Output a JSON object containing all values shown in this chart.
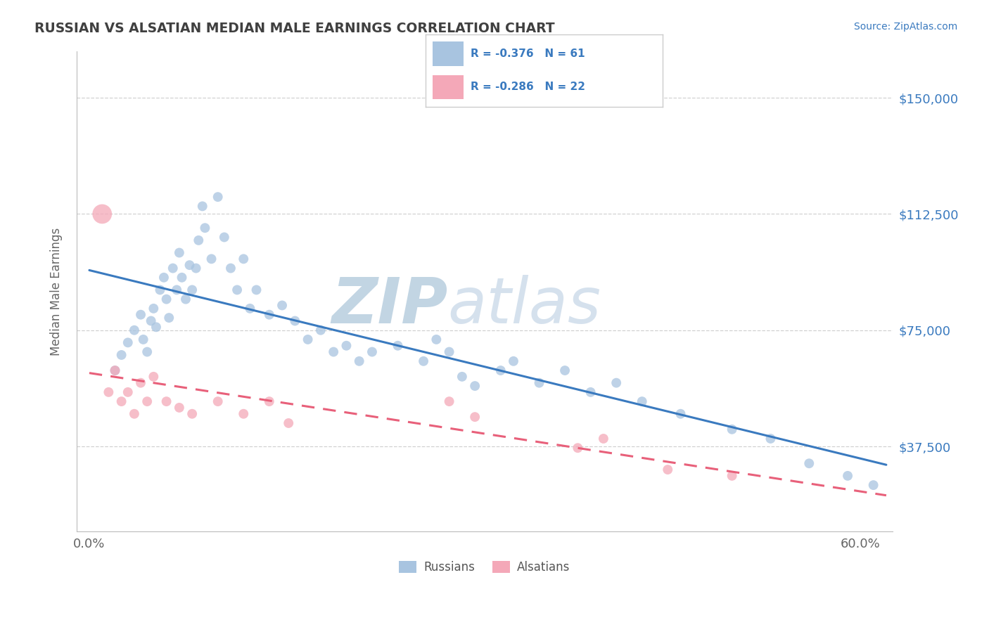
{
  "title": "RUSSIAN VS ALSATIAN MEDIAN MALE EARNINGS CORRELATION CHART",
  "source_text": "Source: ZipAtlas.com",
  "ylabel": "Median Male Earnings",
  "xlim": [
    -0.01,
    0.625
  ],
  "ylim": [
    10000,
    165000
  ],
  "yticks": [
    37500,
    75000,
    112500,
    150000
  ],
  "ytick_labels": [
    "$37,500",
    "$75,000",
    "$112,500",
    "$150,000"
  ],
  "xticks": [
    0.0,
    0.1,
    0.2,
    0.3,
    0.4,
    0.5,
    0.6
  ],
  "xtick_labels": [
    "0.0%",
    "",
    "",
    "",
    "",
    "",
    "60.0%"
  ],
  "russian_R": -0.376,
  "russian_N": 61,
  "alsatian_R": -0.286,
  "alsatian_N": 22,
  "russian_color": "#a8c4e0",
  "alsatian_color": "#f4a8b8",
  "russian_line_color": "#3a7abf",
  "alsatian_line_color": "#e8607a",
  "background_color": "#ffffff",
  "grid_color": "#cccccc",
  "title_color": "#404040",
  "watermark_zip_color": "#b8cedf",
  "watermark_atlas_color": "#c8d8e8",
  "legend_russian_color": "#a8c4e0",
  "legend_alsatian_color": "#f4a8b8",
  "russians_x": [
    0.02,
    0.025,
    0.03,
    0.035,
    0.04,
    0.042,
    0.045,
    0.048,
    0.05,
    0.052,
    0.055,
    0.058,
    0.06,
    0.062,
    0.065,
    0.068,
    0.07,
    0.072,
    0.075,
    0.078,
    0.08,
    0.083,
    0.085,
    0.088,
    0.09,
    0.095,
    0.1,
    0.105,
    0.11,
    0.115,
    0.12,
    0.125,
    0.13,
    0.14,
    0.15,
    0.16,
    0.17,
    0.18,
    0.19,
    0.2,
    0.21,
    0.22,
    0.24,
    0.26,
    0.27,
    0.28,
    0.29,
    0.3,
    0.32,
    0.33,
    0.35,
    0.37,
    0.39,
    0.41,
    0.43,
    0.46,
    0.5,
    0.53,
    0.56,
    0.59,
    0.61
  ],
  "russians_y": [
    62000,
    67000,
    71000,
    75000,
    80000,
    72000,
    68000,
    78000,
    82000,
    76000,
    88000,
    92000,
    85000,
    79000,
    95000,
    88000,
    100000,
    92000,
    85000,
    96000,
    88000,
    95000,
    104000,
    115000,
    108000,
    98000,
    118000,
    105000,
    95000,
    88000,
    98000,
    82000,
    88000,
    80000,
    83000,
    78000,
    72000,
    75000,
    68000,
    70000,
    65000,
    68000,
    70000,
    65000,
    72000,
    68000,
    60000,
    57000,
    62000,
    65000,
    58000,
    62000,
    55000,
    58000,
    52000,
    48000,
    43000,
    40000,
    32000,
    28000,
    25000
  ],
  "alsatians_x": [
    0.01,
    0.015,
    0.02,
    0.025,
    0.03,
    0.035,
    0.04,
    0.045,
    0.05,
    0.06,
    0.07,
    0.08,
    0.1,
    0.12,
    0.14,
    0.155,
    0.28,
    0.3,
    0.38,
    0.4,
    0.45,
    0.5
  ],
  "alsatians_y": [
    112500,
    55000,
    62000,
    52000,
    55000,
    48000,
    58000,
    52000,
    60000,
    52000,
    50000,
    48000,
    52000,
    48000,
    52000,
    45000,
    52000,
    47000,
    37000,
    40000,
    30000,
    28000
  ],
  "russians_sizes": [
    100,
    100,
    100,
    100,
    100,
    100,
    100,
    100,
    100,
    100,
    100,
    100,
    100,
    100,
    100,
    100,
    100,
    100,
    100,
    100,
    100,
    100,
    100,
    100,
    100,
    100,
    100,
    100,
    100,
    100,
    100,
    100,
    100,
    100,
    100,
    100,
    100,
    100,
    100,
    100,
    100,
    100,
    100,
    100,
    100,
    100,
    100,
    100,
    100,
    100,
    100,
    100,
    100,
    100,
    100,
    100,
    100,
    100,
    100,
    100,
    100
  ],
  "alsatians_sizes": [
    400,
    100,
    100,
    100,
    100,
    100,
    100,
    100,
    100,
    100,
    100,
    100,
    100,
    100,
    100,
    100,
    100,
    100,
    100,
    100,
    100,
    100
  ]
}
